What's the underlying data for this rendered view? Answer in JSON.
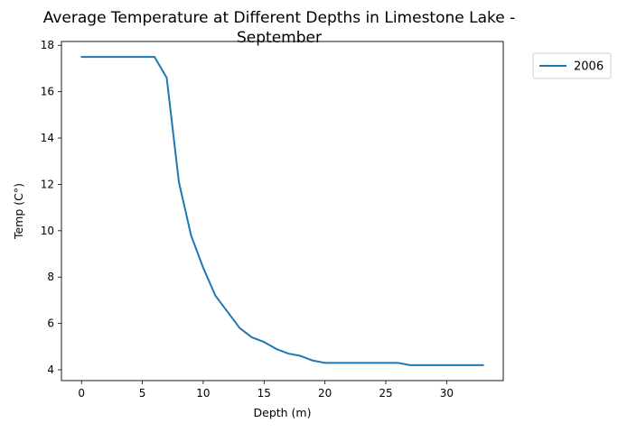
{
  "chart_data": {
    "type": "line",
    "title_lines": [
      "Average Temperature at Different Depths in Limestone Lake -",
      "September"
    ],
    "xlabel": "Depth (m)",
    "ylabel": "Temp (C°)",
    "xlim": [
      -1.65,
      34.65
    ],
    "ylim": [
      3.535,
      18.165
    ],
    "xticks": [
      0,
      5,
      10,
      15,
      20,
      25,
      30
    ],
    "yticks": [
      4,
      6,
      8,
      10,
      12,
      14,
      16,
      18
    ],
    "grid": false,
    "legend_position": "outside-top-right",
    "series": [
      {
        "name": "2006",
        "color": "#1f77b4",
        "x": [
          0,
          1,
          2,
          3,
          4,
          5,
          6,
          7,
          8,
          9,
          10,
          11,
          12,
          13,
          14,
          15,
          16,
          17,
          18,
          19,
          20,
          21,
          22,
          23,
          24,
          25,
          26,
          27,
          28,
          29,
          30,
          31,
          32,
          33
        ],
        "y": [
          17.5,
          17.5,
          17.5,
          17.5,
          17.5,
          17.5,
          17.5,
          16.6,
          12.1,
          9.8,
          8.4,
          7.2,
          6.5,
          5.8,
          5.4,
          5.2,
          4.9,
          4.7,
          4.6,
          4.4,
          4.3,
          4.3,
          4.3,
          4.3,
          4.3,
          4.3,
          4.3,
          4.2,
          4.2,
          4.2,
          4.2,
          4.2,
          4.2,
          4.2
        ]
      }
    ]
  }
}
